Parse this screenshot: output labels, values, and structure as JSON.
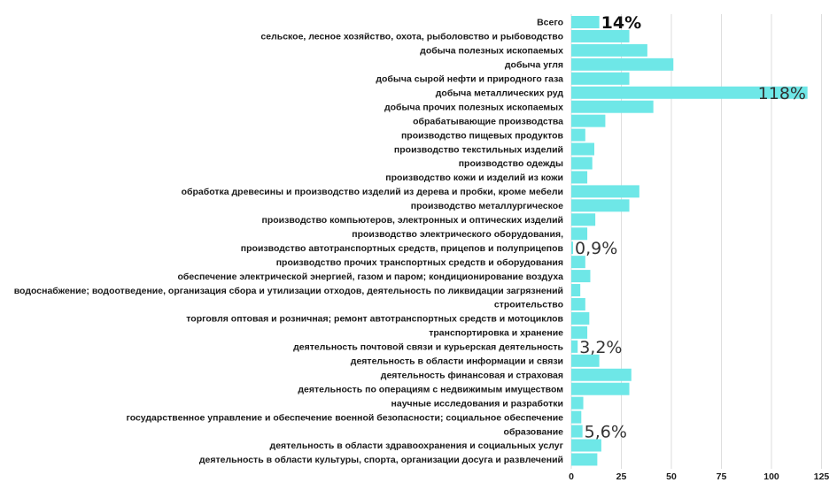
{
  "chart_data": {
    "type": "bar",
    "orientation": "horizontal",
    "title": "",
    "xlabel": "",
    "ylabel": "",
    "xlim": [
      0,
      125
    ],
    "x_ticks": [
      0,
      25,
      50,
      75,
      100,
      125
    ],
    "grid": "vertical",
    "bar_color": "#6ee7e7",
    "categories": [
      "Всего",
      "сельское, лесное хозяйство, охота, рыболовство и рыбоводство",
      "добыча полезных ископаемых",
      "добыча угля",
      "добыча сырой нефти и природного газа",
      "добыча металлических руд",
      "добыча прочих полезных ископаемых",
      "обрабатывающие производства",
      "производство пищевых продуктов",
      "производство текстильных изделий",
      "производство одежды",
      "производство кожи и изделий из кожи",
      "обработка древесины и производство изделий из дерева и пробки, кроме мебели",
      "производство металлургическое",
      "производство компьютеров, электронных и оптических изделий",
      "производство электрического оборудования,",
      "производство автотранспортных средств, прицепов и полуприцепов",
      "производство прочих транспортных средств и оборудования",
      "обеспечение электрической энергией, газом и паром; кондиционирование воздуха",
      "водоснабжение; водоотведение, организация сбора и утилизации отходов,  деятельность по ликвидации загрязнений",
      "строительство",
      "торговля оптовая и розничная; ремонт автотранспортных средств и мотоциклов",
      "транспортировка и хранение",
      "деятельность почтовой связи и курьерская деятельность",
      "деятельность в области информации и связи",
      "деятельность финансовая и страховая",
      "деятельность по операциям с недвижимым имуществом",
      "научные исследования и разработки",
      "государственное управление и обеспечение военной безопасности; социальное обеспечение",
      "образование",
      "деятельность в области здравоохранения и социальных услуг",
      "деятельность в области культуры, спорта, организации досуга и развлечений"
    ],
    "values": [
      14,
      29,
      38,
      51,
      29,
      118,
      41,
      17,
      7,
      11.5,
      10.5,
      8,
      34,
      29,
      12,
      8,
      0.9,
      7,
      9.5,
      4.5,
      7,
      9,
      8,
      3.2,
      14,
      30,
      29,
      6,
      5,
      5.6,
      15,
      13
    ],
    "annotations": [
      {
        "category_index": 0,
        "text": "14%",
        "bold": true
      },
      {
        "category_index": 5,
        "text": "118%",
        "bold": false
      },
      {
        "category_index": 16,
        "text": "0,9%",
        "bold": false
      },
      {
        "category_index": 23,
        "text": "3,2%",
        "bold": false
      },
      {
        "category_index": 29,
        "text": "5,6%",
        "bold": false
      }
    ]
  }
}
